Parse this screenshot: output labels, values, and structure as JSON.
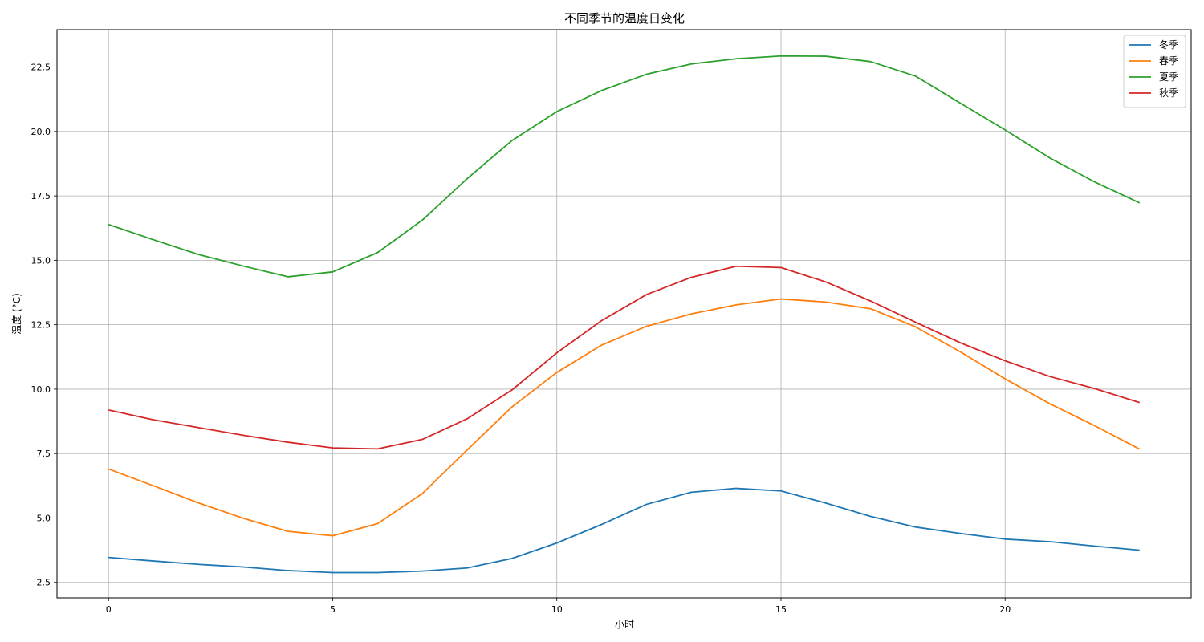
{
  "chart_data": {
    "type": "line",
    "title": "不同季节的温度日变化",
    "xlabel": "小时",
    "ylabel": "温度 (°C)",
    "xlim": [
      -1.15,
      24.15
    ],
    "ylim": [
      1.9,
      23.95
    ],
    "x": [
      0,
      1,
      2,
      3,
      4,
      5,
      6,
      7,
      8,
      9,
      10,
      11,
      12,
      13,
      14,
      15,
      16,
      17,
      18,
      19,
      20,
      21,
      22,
      23
    ],
    "xticks": [
      0,
      5,
      10,
      15,
      20
    ],
    "xtick_labels": [
      "0",
      "5",
      "10",
      "15",
      "20"
    ],
    "yticks": [
      2.5,
      5.0,
      7.5,
      10.0,
      12.5,
      15.0,
      17.5,
      20.0,
      22.5
    ],
    "ytick_labels": [
      "2.5",
      "5.0",
      "7.5",
      "10.0",
      "12.5",
      "15.0",
      "17.5",
      "20.0",
      "22.5"
    ],
    "grid": true,
    "legend_position": "top-right",
    "series": [
      {
        "name": "冬季",
        "color": "#1f77b4",
        "values": [
          3.47,
          3.33,
          3.2,
          3.1,
          2.96,
          2.88,
          2.88,
          2.94,
          3.06,
          3.43,
          4.03,
          4.75,
          5.53,
          6.0,
          6.15,
          6.05,
          5.58,
          5.06,
          4.65,
          4.4,
          4.18,
          4.08,
          3.91,
          3.75
        ]
      },
      {
        "name": "春季",
        "color": "#ff7f0e",
        "values": [
          6.9,
          6.25,
          5.59,
          4.99,
          4.48,
          4.31,
          4.78,
          5.95,
          7.64,
          9.31,
          10.65,
          11.71,
          12.44,
          12.92,
          13.27,
          13.5,
          13.38,
          13.12,
          12.42,
          11.45,
          10.4,
          9.43,
          8.58,
          7.67
        ]
      },
      {
        "name": "夏季",
        "color": "#2ca02c",
        "values": [
          16.39,
          15.8,
          15.23,
          14.78,
          14.36,
          14.55,
          15.3,
          16.56,
          18.17,
          19.65,
          20.77,
          21.59,
          22.22,
          22.62,
          22.82,
          22.93,
          22.92,
          22.71,
          22.15,
          21.1,
          20.06,
          18.97,
          18.04,
          17.23
        ]
      },
      {
        "name": "秋季",
        "color": "#d62728",
        "values": [
          9.19,
          8.81,
          8.51,
          8.21,
          7.94,
          7.72,
          7.68,
          8.05,
          8.85,
          9.97,
          11.41,
          12.66,
          13.67,
          14.34,
          14.77,
          14.72,
          14.16,
          13.42,
          12.6,
          11.8,
          11.1,
          10.49,
          10.02,
          9.48
        ]
      }
    ]
  }
}
